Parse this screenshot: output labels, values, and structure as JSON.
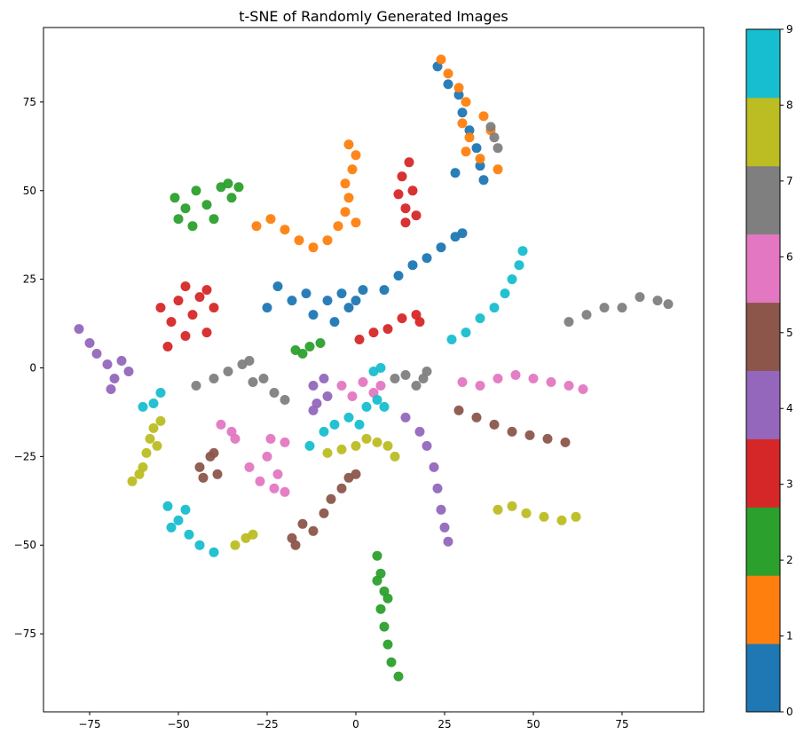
{
  "chart_data": {
    "type": "scatter",
    "title": "t-SNE of Randomly Generated Images",
    "xlabel": "",
    "ylabel": "",
    "xlim": [
      -88,
      98
    ],
    "ylim": [
      -97,
      96
    ],
    "xticks": [
      -75,
      -50,
      -25,
      0,
      25,
      50,
      75
    ],
    "yticks": [
      -75,
      -50,
      -25,
      0,
      25,
      50,
      75
    ],
    "grid": false,
    "legend": "none",
    "colorbar": {
      "ticks": [
        0,
        1,
        2,
        3,
        4,
        5,
        6,
        7,
        8,
        9
      ],
      "range": [
        0,
        9
      ],
      "colors": [
        "#1f77b4",
        "#ff7f0e",
        "#2ca02c",
        "#d62728",
        "#9467bd",
        "#8c564b",
        "#e377c2",
        "#7f7f7f",
        "#bcbd22",
        "#17becf"
      ]
    },
    "clusters": [
      {
        "label": 0,
        "points": [
          [
            -25,
            17
          ],
          [
            -22,
            23
          ],
          [
            -18,
            19
          ],
          [
            -14,
            21
          ],
          [
            -12,
            15
          ],
          [
            -8,
            19
          ],
          [
            -6,
            13
          ],
          [
            -4,
            21
          ],
          [
            -2,
            17
          ],
          [
            0,
            19
          ],
          [
            2,
            22
          ]
        ]
      },
      {
        "label": 0,
        "points": [
          [
            8,
            22
          ],
          [
            12,
            26
          ],
          [
            16,
            29
          ],
          [
            20,
            31
          ],
          [
            24,
            34
          ],
          [
            28,
            37
          ],
          [
            30,
            38
          ]
        ]
      },
      {
        "label": 0,
        "points": [
          [
            23,
            85
          ],
          [
            26,
            80
          ],
          [
            29,
            77
          ],
          [
            30,
            72
          ],
          [
            32,
            67
          ],
          [
            34,
            62
          ],
          [
            35,
            57
          ],
          [
            28,
            55
          ],
          [
            36,
            53
          ]
        ]
      },
      {
        "label": 1,
        "points": [
          [
            -28,
            40
          ],
          [
            -24,
            42
          ],
          [
            -20,
            39
          ],
          [
            -16,
            36
          ],
          [
            -12,
            34
          ],
          [
            -8,
            36
          ],
          [
            -5,
            40
          ],
          [
            -3,
            44
          ],
          [
            0,
            41
          ],
          [
            -2,
            48
          ],
          [
            -3,
            52
          ],
          [
            -1,
            56
          ],
          [
            0,
            60
          ],
          [
            -2,
            63
          ]
        ]
      },
      {
        "label": 1,
        "points": [
          [
            24,
            87
          ],
          [
            26,
            83
          ],
          [
            29,
            79
          ],
          [
            31,
            75
          ],
          [
            30,
            69
          ],
          [
            32,
            65
          ],
          [
            36,
            71
          ],
          [
            38,
            67
          ],
          [
            31,
            61
          ],
          [
            35,
            59
          ],
          [
            40,
            56
          ]
        ]
      },
      {
        "label": 2,
        "points": [
          [
            -51,
            48
          ],
          [
            -48,
            45
          ],
          [
            -45,
            50
          ],
          [
            -42,
            46
          ],
          [
            -38,
            51
          ],
          [
            -35,
            48
          ],
          [
            -40,
            42
          ],
          [
            -46,
            40
          ],
          [
            -50,
            42
          ],
          [
            -36,
            52
          ],
          [
            -33,
            51
          ]
        ]
      },
      {
        "label": 2,
        "points": [
          [
            -17,
            5
          ],
          [
            -15,
            4
          ],
          [
            -13,
            6
          ],
          [
            -10,
            7
          ]
        ]
      },
      {
        "label": 2,
        "points": [
          [
            6,
            -53
          ],
          [
            7,
            -58
          ],
          [
            8,
            -63
          ],
          [
            7,
            -68
          ],
          [
            8,
            -73
          ],
          [
            9,
            -78
          ],
          [
            10,
            -83
          ],
          [
            12,
            -87
          ],
          [
            6,
            -60
          ],
          [
            9,
            -65
          ]
        ]
      },
      {
        "label": 3,
        "points": [
          [
            -55,
            17
          ],
          [
            -52,
            13
          ],
          [
            -50,
            19
          ],
          [
            -48,
            23
          ],
          [
            -46,
            15
          ],
          [
            -44,
            20
          ],
          [
            -42,
            10
          ],
          [
            -48,
            9
          ],
          [
            -53,
            6
          ],
          [
            -40,
            17
          ],
          [
            -42,
            22
          ]
        ]
      },
      {
        "label": 3,
        "points": [
          [
            12,
            49
          ],
          [
            13,
            54
          ],
          [
            14,
            45
          ],
          [
            15,
            58
          ],
          [
            16,
            50
          ],
          [
            17,
            43
          ],
          [
            14,
            41
          ]
        ]
      },
      {
        "label": 3,
        "points": [
          [
            1,
            8
          ],
          [
            5,
            10
          ],
          [
            9,
            11
          ],
          [
            13,
            14
          ],
          [
            17,
            15
          ],
          [
            18,
            13
          ]
        ]
      },
      {
        "label": 4,
        "points": [
          [
            -78,
            11
          ],
          [
            -75,
            7
          ],
          [
            -73,
            4
          ],
          [
            -70,
            1
          ],
          [
            -68,
            -3
          ],
          [
            -66,
            2
          ],
          [
            -64,
            -1
          ],
          [
            -69,
            -6
          ]
        ]
      },
      {
        "label": 4,
        "points": [
          [
            -12,
            -5
          ],
          [
            -11,
            -10
          ],
          [
            -9,
            -3
          ],
          [
            -8,
            -8
          ],
          [
            -12,
            -12
          ]
        ]
      },
      {
        "label": 4,
        "points": [
          [
            14,
            -14
          ],
          [
            18,
            -18
          ],
          [
            20,
            -22
          ],
          [
            22,
            -28
          ],
          [
            23,
            -34
          ],
          [
            24,
            -40
          ],
          [
            25,
            -45
          ],
          [
            26,
            -49
          ]
        ]
      },
      {
        "label": 5,
        "points": [
          [
            -44,
            -28
          ],
          [
            -41,
            -25
          ],
          [
            -39,
            -30
          ],
          [
            -43,
            -31
          ],
          [
            -40,
            -24
          ]
        ]
      },
      {
        "label": 5,
        "points": [
          [
            -18,
            -48
          ],
          [
            -15,
            -44
          ],
          [
            -12,
            -46
          ],
          [
            -9,
            -41
          ],
          [
            -7,
            -37
          ],
          [
            -4,
            -34
          ],
          [
            -2,
            -31
          ],
          [
            0,
            -30
          ],
          [
            -17,
            -50
          ]
        ]
      },
      {
        "label": 5,
        "points": [
          [
            29,
            -12
          ],
          [
            34,
            -14
          ],
          [
            39,
            -16
          ],
          [
            44,
            -18
          ],
          [
            49,
            -19
          ],
          [
            54,
            -20
          ],
          [
            59,
            -21
          ]
        ]
      },
      {
        "label": 6,
        "points": [
          [
            -38,
            -16
          ],
          [
            -35,
            -18
          ],
          [
            -34,
            -20
          ]
        ]
      },
      {
        "label": 6,
        "points": [
          [
            -30,
            -28
          ],
          [
            -27,
            -32
          ],
          [
            -25,
            -25
          ],
          [
            -22,
            -30
          ],
          [
            -20,
            -35
          ],
          [
            -24,
            -20
          ],
          [
            -20,
            -21
          ],
          [
            -23,
            -34
          ]
        ]
      },
      {
        "label": 6,
        "points": [
          [
            -4,
            -5
          ],
          [
            -1,
            -8
          ],
          [
            2,
            -4
          ],
          [
            5,
            -7
          ],
          [
            7,
            -5
          ]
        ]
      },
      {
        "label": 6,
        "points": [
          [
            30,
            -4
          ],
          [
            35,
            -5
          ],
          [
            40,
            -3
          ],
          [
            45,
            -2
          ],
          [
            50,
            -3
          ],
          [
            55,
            -4
          ],
          [
            60,
            -5
          ],
          [
            64,
            -6
          ]
        ]
      },
      {
        "label": 7,
        "points": [
          [
            -45,
            -5
          ],
          [
            -40,
            -3
          ],
          [
            -36,
            -1
          ],
          [
            -32,
            1
          ],
          [
            -29,
            -4
          ],
          [
            -26,
            -3
          ],
          [
            -23,
            -7
          ],
          [
            -20,
            -9
          ],
          [
            -30,
            2
          ]
        ]
      },
      {
        "label": 7,
        "points": [
          [
            11,
            -3
          ],
          [
            14,
            -2
          ],
          [
            17,
            -5
          ],
          [
            19,
            -3
          ],
          [
            20,
            -1
          ]
        ]
      },
      {
        "label": 7,
        "points": [
          [
            60,
            13
          ],
          [
            65,
            15
          ],
          [
            70,
            17
          ],
          [
            75,
            17
          ],
          [
            80,
            20
          ],
          [
            85,
            19
          ],
          [
            88,
            18
          ]
        ]
      },
      {
        "label": 7,
        "points": [
          [
            38,
            68
          ],
          [
            39,
            65
          ],
          [
            40,
            62
          ]
        ]
      },
      {
        "label": 8,
        "points": [
          [
            -63,
            -32
          ],
          [
            -60,
            -28
          ],
          [
            -59,
            -24
          ],
          [
            -58,
            -20
          ],
          [
            -57,
            -17
          ],
          [
            -55,
            -15
          ],
          [
            -61,
            -30
          ],
          [
            -56,
            -22
          ]
        ]
      },
      {
        "label": 8,
        "points": [
          [
            -34,
            -50
          ],
          [
            -31,
            -48
          ],
          [
            -29,
            -47
          ]
        ]
      },
      {
        "label": 8,
        "points": [
          [
            -8,
            -24
          ],
          [
            -4,
            -23
          ],
          [
            0,
            -22
          ],
          [
            3,
            -20
          ],
          [
            6,
            -21
          ],
          [
            9,
            -22
          ],
          [
            11,
            -25
          ]
        ]
      },
      {
        "label": 8,
        "points": [
          [
            40,
            -40
          ],
          [
            44,
            -39
          ],
          [
            48,
            -41
          ],
          [
            53,
            -42
          ],
          [
            58,
            -43
          ],
          [
            62,
            -42
          ]
        ]
      },
      {
        "label": 9,
        "points": [
          [
            -53,
            -39
          ],
          [
            -50,
            -43
          ],
          [
            -47,
            -47
          ],
          [
            -44,
            -50
          ],
          [
            -40,
            -52
          ],
          [
            -52,
            -45
          ],
          [
            -48,
            -40
          ]
        ]
      },
      {
        "label": 9,
        "points": [
          [
            -60,
            -11
          ],
          [
            -57,
            -10
          ],
          [
            -55,
            -7
          ]
        ]
      },
      {
        "label": 9,
        "points": [
          [
            -13,
            -22
          ],
          [
            -9,
            -18
          ],
          [
            -6,
            -16
          ],
          [
            -2,
            -14
          ],
          [
            1,
            -16
          ],
          [
            3,
            -11
          ],
          [
            6,
            -9
          ],
          [
            8,
            -11
          ]
        ]
      },
      {
        "label": 9,
        "points": [
          [
            27,
            8
          ],
          [
            31,
            10
          ],
          [
            35,
            14
          ],
          [
            39,
            17
          ],
          [
            42,
            21
          ],
          [
            44,
            25
          ],
          [
            46,
            29
          ],
          [
            47,
            33
          ]
        ]
      },
      {
        "label": 9,
        "points": [
          [
            5,
            -1
          ],
          [
            7,
            0
          ]
        ]
      }
    ]
  }
}
